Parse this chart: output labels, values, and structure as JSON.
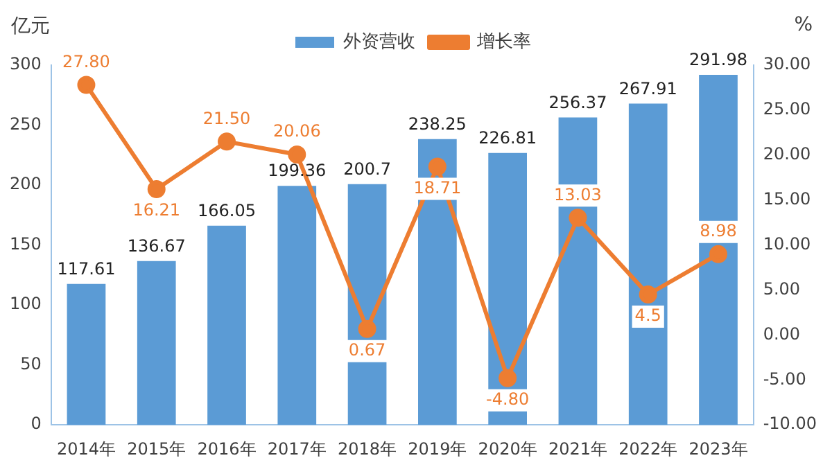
{
  "chart_data": {
    "type": "bar",
    "ylabel": "亿元",
    "y2label": "%",
    "categories": [
      "2014年",
      "2015年",
      "2016年",
      "2017年",
      "2018年",
      "2019年",
      "2020年",
      "2021年",
      "2022年",
      "2023年"
    ],
    "series": [
      {
        "name": "外资营收",
        "color": "#5b9bd5",
        "values": [
          117.61,
          136.67,
          166.05,
          199.36,
          200.7,
          238.25,
          226.81,
          256.37,
          267.91,
          291.98
        ],
        "value_labels": [
          "117.61",
          "136.67",
          "166.05",
          "199.36",
          "200.7",
          "238.25",
          "226.81",
          "256.37",
          "267.91",
          "291.98"
        ]
      },
      {
        "name": "增长率",
        "type": "line",
        "axis": "y2",
        "color": "#ed7d31",
        "marker": "circle",
        "values": [
          27.8,
          16.21,
          21.5,
          20.06,
          0.67,
          18.71,
          -4.8,
          13.03,
          4.5,
          8.98
        ],
        "value_labels": [
          "27.80",
          "16.21",
          "21.50",
          "20.06",
          "0.67",
          "18.71",
          "-4.80",
          "13.03",
          "4.5",
          "8.98"
        ]
      }
    ],
    "ylim": [
      0,
      300
    ],
    "yticks": [
      0,
      50,
      100,
      150,
      200,
      250,
      300
    ],
    "y2lim": [
      -10,
      30
    ],
    "y2ticks": [
      {
        "value": -10,
        "label": "-10.00"
      },
      {
        "value": -5,
        "label": "-5.00"
      },
      {
        "value": 0,
        "label": "0.00"
      },
      {
        "value": 5,
        "label": "5.00"
      },
      {
        "value": 10,
        "label": "10.00"
      },
      {
        "value": 15,
        "label": "15.00"
      },
      {
        "value": 20,
        "label": "20.00"
      },
      {
        "value": 25,
        "label": "25.00"
      },
      {
        "value": 30,
        "label": "30.00"
      }
    ],
    "legend": "top",
    "grid": false
  }
}
